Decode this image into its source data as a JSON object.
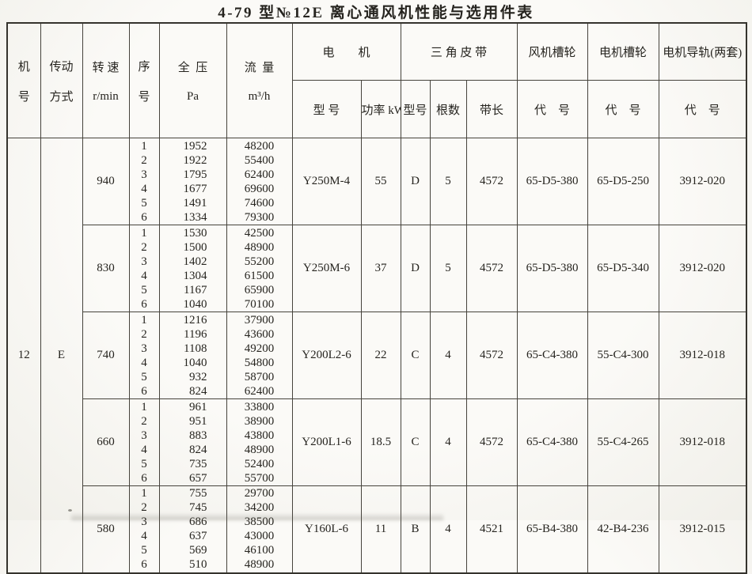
{
  "title": "4-79 型№12E 离心通风机性能与选用件表",
  "colors": {
    "paper": "#f8f7f3",
    "line": "#46433c",
    "text": "#26241f"
  },
  "table": {
    "machine_no": "12",
    "drive_mode": "E",
    "header": {
      "machine_no": [
        "机",
        "号"
      ],
      "drive": [
        "传动",
        "方式"
      ],
      "speed": [
        "转 速",
        "r/min"
      ],
      "seq": [
        "序",
        "号"
      ],
      "pressure": [
        "全  压",
        "Pa"
      ],
      "flow": [
        "流  量",
        "m³/h"
      ],
      "motor_group": "电　　机",
      "belt_group": "三 角 皮 带",
      "fan_pulley_group": "风机槽轮",
      "motor_pulley_group": "电机槽轮",
      "rail_group": "电机导轨(两套)",
      "motor_model": "型 号",
      "motor_power": "功率 kW",
      "belt_type": "型号",
      "belt_count": "根数",
      "belt_length": "带长",
      "code": "代　号"
    },
    "groups": [
      {
        "speed": "940",
        "rows": [
          {
            "no": "1",
            "pressure": "1952",
            "flow": "48200"
          },
          {
            "no": "2",
            "pressure": "1922",
            "flow": "55400"
          },
          {
            "no": "3",
            "pressure": "1795",
            "flow": "62400"
          },
          {
            "no": "4",
            "pressure": "1677",
            "flow": "69600"
          },
          {
            "no": "5",
            "pressure": "1491",
            "flow": "74600"
          },
          {
            "no": "6",
            "pressure": "1334",
            "flow": "79300"
          }
        ],
        "motor_model": "Y250M-4",
        "motor_power": "55",
        "belt_type": "D",
        "belt_count": "5",
        "belt_length": "4572",
        "fan_pulley": "65-D5-380",
        "motor_pulley": "65-D5-250",
        "motor_rail": "3912-020"
      },
      {
        "speed": "830",
        "rows": [
          {
            "no": "1",
            "pressure": "1530",
            "flow": "42500"
          },
          {
            "no": "2",
            "pressure": "1500",
            "flow": "48900"
          },
          {
            "no": "3",
            "pressure": "1402",
            "flow": "55200"
          },
          {
            "no": "4",
            "pressure": "1304",
            "flow": "61500"
          },
          {
            "no": "5",
            "pressure": "1167",
            "flow": "65900"
          },
          {
            "no": "6",
            "pressure": "1040",
            "flow": "70100"
          }
        ],
        "motor_model": "Y250M-6",
        "motor_power": "37",
        "belt_type": "D",
        "belt_count": "5",
        "belt_length": "4572",
        "fan_pulley": "65-D5-380",
        "motor_pulley": "65-D5-340",
        "motor_rail": "3912-020"
      },
      {
        "speed": "740",
        "rows": [
          {
            "no": "1",
            "pressure": "1216",
            "flow": "37900"
          },
          {
            "no": "2",
            "pressure": "1196",
            "flow": "43600"
          },
          {
            "no": "3",
            "pressure": "1108",
            "flow": "49200"
          },
          {
            "no": "4",
            "pressure": "1040",
            "flow": "54800"
          },
          {
            "no": "5",
            "pressure": "932",
            "flow": "58700"
          },
          {
            "no": "6",
            "pressure": "824",
            "flow": "62400"
          }
        ],
        "motor_model": "Y200L2-6",
        "motor_power": "22",
        "belt_type": "C",
        "belt_count": "4",
        "belt_length": "4572",
        "fan_pulley": "65-C4-380",
        "motor_pulley": "55-C4-300",
        "motor_rail": "3912-018"
      },
      {
        "speed": "660",
        "rows": [
          {
            "no": "1",
            "pressure": "961",
            "flow": "33800"
          },
          {
            "no": "2",
            "pressure": "951",
            "flow": "38900"
          },
          {
            "no": "3",
            "pressure": "883",
            "flow": "43800"
          },
          {
            "no": "4",
            "pressure": "824",
            "flow": "48900"
          },
          {
            "no": "5",
            "pressure": "735",
            "flow": "52400"
          },
          {
            "no": "6",
            "pressure": "657",
            "flow": "55700"
          }
        ],
        "motor_model": "Y200L1-6",
        "motor_power": "18.5",
        "belt_type": "C",
        "belt_count": "4",
        "belt_length": "4572",
        "fan_pulley": "65-C4-380",
        "motor_pulley": "55-C4-265",
        "motor_rail": "3912-018"
      },
      {
        "speed": "580",
        "rows": [
          {
            "no": "1",
            "pressure": "755",
            "flow": "29700"
          },
          {
            "no": "2",
            "pressure": "745",
            "flow": "34200"
          },
          {
            "no": "3",
            "pressure": "686",
            "flow": "38500"
          },
          {
            "no": "4",
            "pressure": "637",
            "flow": "43000"
          },
          {
            "no": "5",
            "pressure": "569",
            "flow": "46100"
          },
          {
            "no": "6",
            "pressure": "510",
            "flow": "48900"
          }
        ],
        "motor_model": "Y160L-6",
        "motor_power": "11",
        "belt_type": "B",
        "belt_count": "4",
        "belt_length": "4521",
        "fan_pulley": "65-B4-380",
        "motor_pulley": "42-B4-236",
        "motor_rail": "3912-015"
      }
    ]
  }
}
